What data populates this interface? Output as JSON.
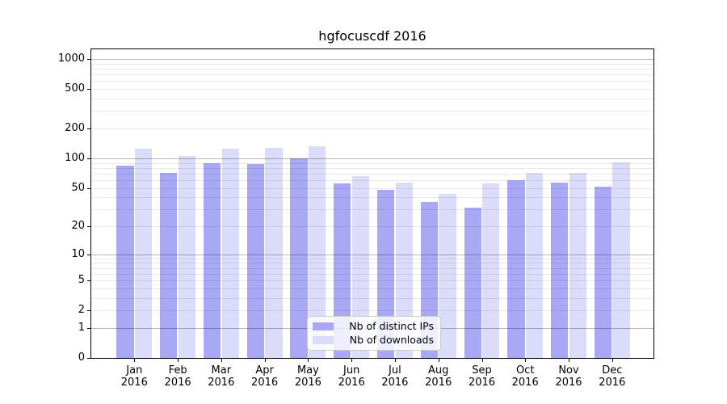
{
  "chart_data": {
    "type": "bar",
    "title": "hgfocuscdf 2016",
    "subtitle": "",
    "xlabel": "",
    "ylabel": "",
    "scale": "log1p (pixel position proportional to log10(value+1))",
    "grid": "horizontal major (1,10,100,1000) + faint minor (2-9 per decade)",
    "legend_position": "lower center, inside plot",
    "x_tick_months": [
      "Jan",
      "Feb",
      "Mar",
      "Apr",
      "May",
      "Jun",
      "Jul",
      "Aug",
      "Sep",
      "Oct",
      "Nov",
      "Dec"
    ],
    "x_tick_year": "2016",
    "yticks": [
      0,
      1,
      2,
      5,
      10,
      20,
      50,
      100,
      200,
      500,
      1000
    ],
    "ylim": [
      0,
      1255
    ],
    "series": [
      {
        "name": "Nb of distinct IPs",
        "color": "#a8a8f5",
        "values": [
          85,
          71,
          90,
          88,
          99,
          56,
          48,
          36,
          31,
          60,
          57,
          51
        ]
      },
      {
        "name": "Nb of downloads",
        "color": "#dbdbfa",
        "values": [
          126,
          106,
          126,
          128,
          132,
          66,
          57,
          43,
          55,
          71,
          71,
          91
        ]
      }
    ],
    "colors": {
      "bar_distinct_ips": "#a8a8f5",
      "bar_downloads": "#dbdbfa",
      "axis": "#000000",
      "legend_border": "#cccccc",
      "background": "#ffffff"
    }
  }
}
